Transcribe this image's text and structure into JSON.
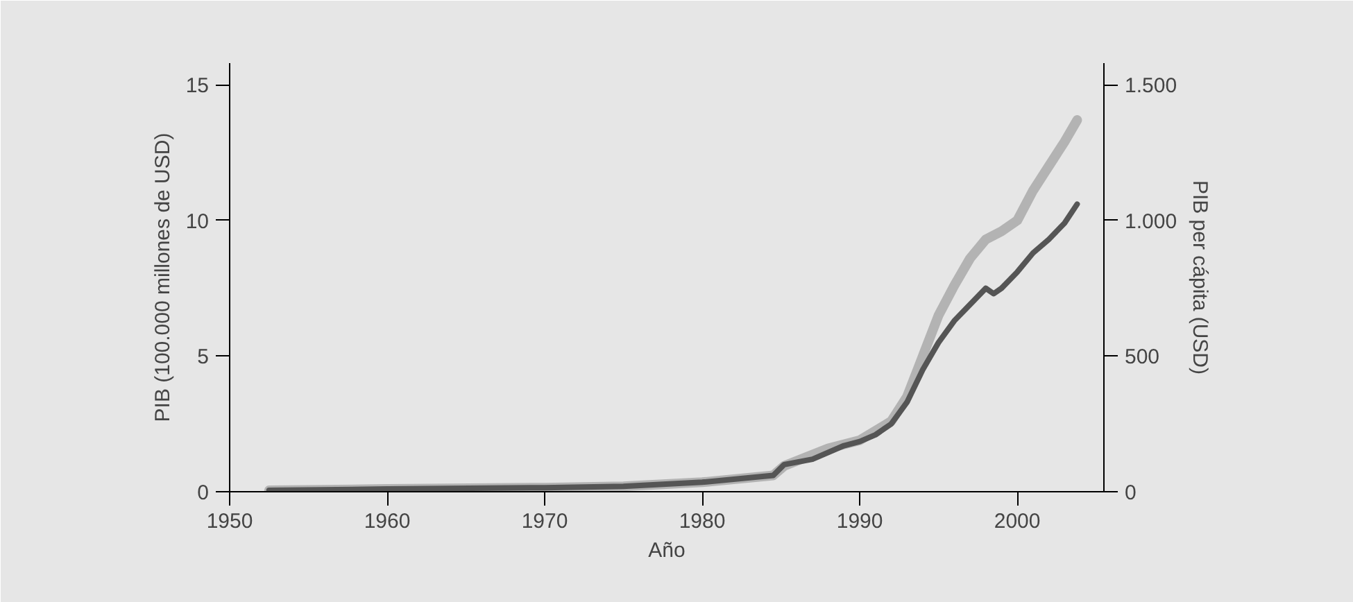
{
  "chart_data": {
    "type": "line",
    "xlabel": "Año",
    "ylabel": "PIB (100.000 millones de USD)",
    "y2label": "PIB per cápita (USD)",
    "xlim": [
      1950,
      2005.5
    ],
    "xticks": [
      1950,
      1960,
      1970,
      1980,
      1990,
      2000
    ],
    "ylim": [
      0,
      15.8
    ],
    "yticks": [
      0,
      5,
      10,
      15
    ],
    "y2lim": [
      0,
      1580
    ],
    "y2ticks": [
      0,
      500,
      {
        "value": 1000,
        "label": "1.000"
      },
      {
        "value": 1500,
        "label": "1.500"
      }
    ],
    "marker": "none",
    "line_style": "solid",
    "series": [
      {
        "color": "#b3b3b3",
        "axis": "y2",
        "x": [
          1952.5,
          1960,
          1970,
          1975,
          1980,
          1984.5,
          1985.2,
          1988,
          1990,
          1992,
          1993,
          1994,
          1995,
          1996,
          1997,
          1998,
          1999,
          2000,
          2001,
          2002,
          2003,
          2003.8
        ],
        "values": [
          5,
          10,
          15,
          20,
          35,
          60,
          95,
          160,
          190,
          260,
          350,
          500,
          650,
          760,
          860,
          930,
          960,
          1000,
          1110,
          1200,
          1290,
          1370
        ]
      },
      {
        "color": "#555555",
        "x": [
          1952.5,
          1960,
          1970,
          1975,
          1980,
          1984.5,
          1985.2,
          1987,
          1989,
          1990,
          1991,
          1992,
          1993,
          1994,
          1995,
          1996,
          1997,
          1998,
          1998.5,
          1999,
          2000,
          2001,
          2002,
          2003,
          2003.8
        ],
        "values": [
          0.05,
          0.1,
          0.15,
          0.2,
          0.35,
          0.6,
          1.0,
          1.2,
          1.7,
          1.85,
          2.1,
          2.5,
          3.3,
          4.5,
          5.5,
          6.3,
          6.9,
          7.5,
          7.3,
          7.5,
          8.1,
          8.8,
          9.3,
          9.9,
          10.6
        ]
      }
    ]
  }
}
